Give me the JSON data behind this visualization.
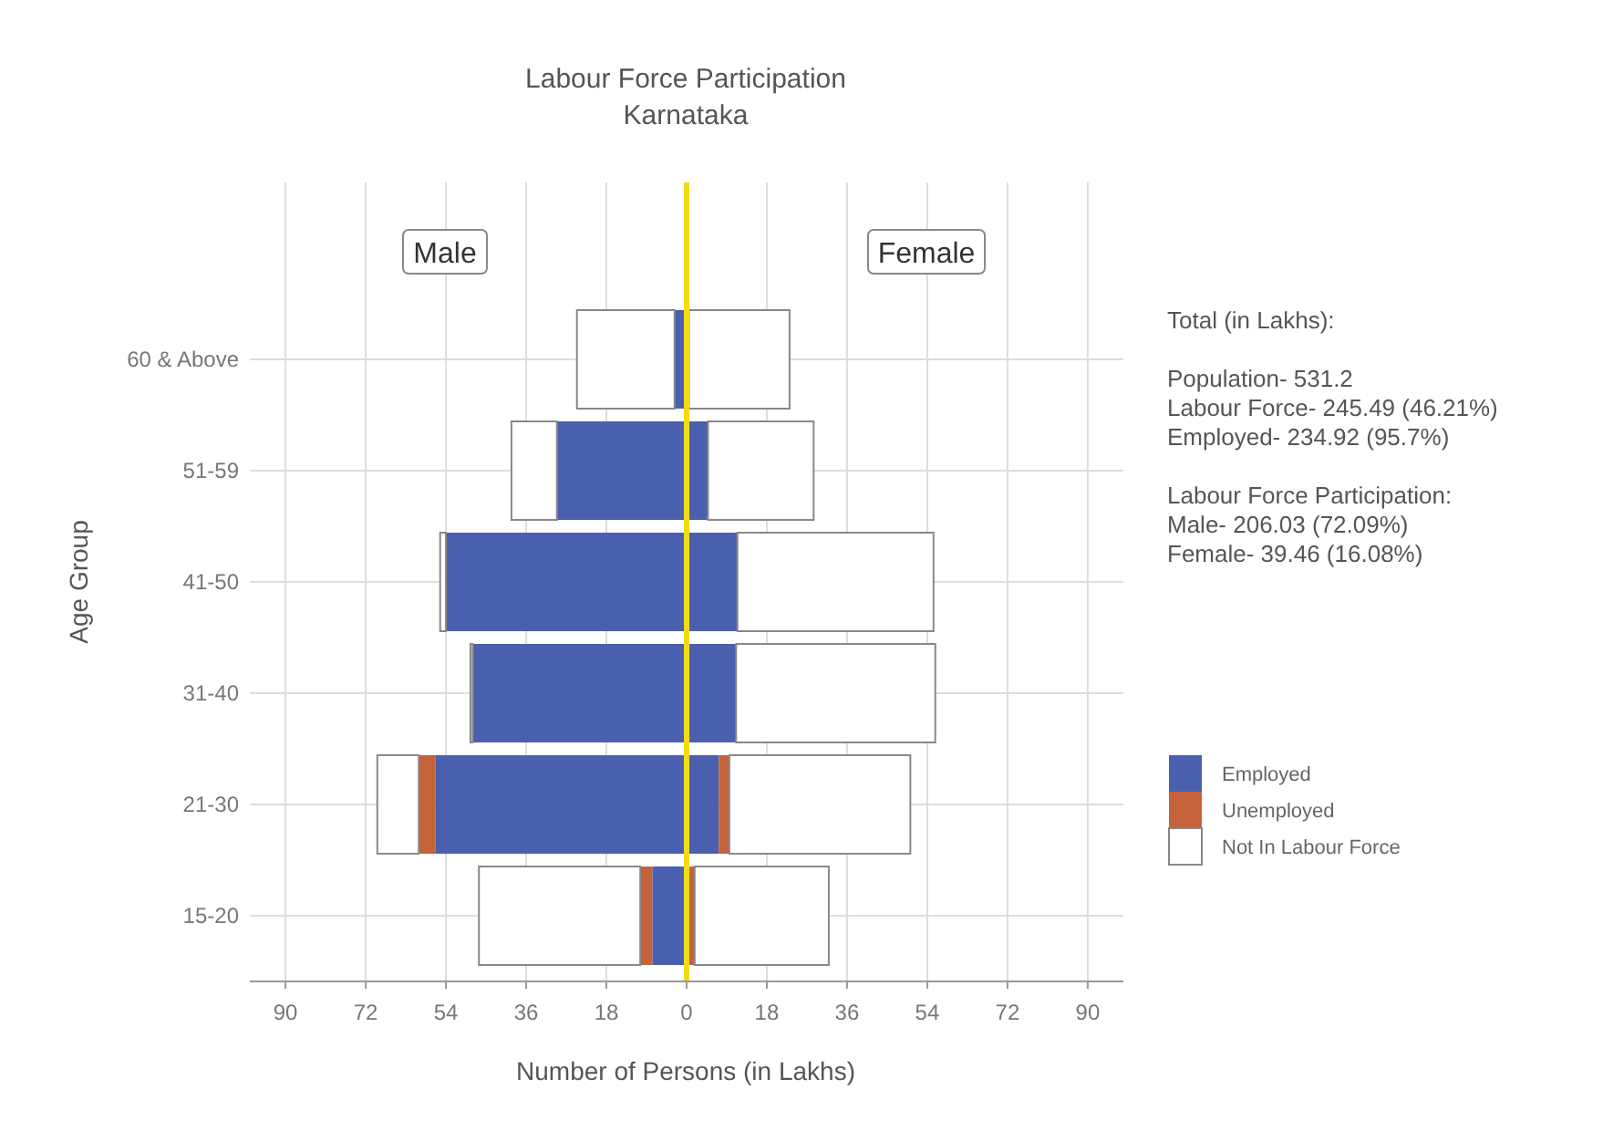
{
  "chart_data": {
    "type": "bar",
    "orientation": "horizontal",
    "stacked": true,
    "title": "Labour Force Participation",
    "subtitle": "Karnataka",
    "xlabel": "Number of Persons (in Lakhs)",
    "ylabel": "Age Group",
    "categories": [
      "60 & Above",
      "51-59",
      "41-50",
      "31-40",
      "21-30",
      "15-20"
    ],
    "series": [
      {
        "name": "Employed",
        "color": "#4a60ae",
        "values": [
          -2.7,
          -29.1,
          -54.0,
          -48.0,
          -56.4,
          -7.7
        ]
      },
      {
        "name": "Unemployed",
        "color": "#c4623a",
        "values": [
          0,
          0,
          0,
          0,
          -3.7,
          -2.7
        ]
      },
      {
        "name": "Not In Labour Force",
        "color": "#ffffff",
        "values": [
          -21.9,
          -10.2,
          -1.3,
          -0.5,
          -9.3,
          -36.2
        ]
      },
      {
        "color": "#4a60ae",
        "values": [
          0.5,
          4.8,
          11.4,
          11.1,
          7.2,
          0.3
        ]
      },
      {
        "color": "#c4623a",
        "values": [
          0,
          0,
          0,
          0,
          2.4,
          1.5
        ]
      },
      {
        "color": "#ffffff",
        "values": [
          22.6,
          23.7,
          44.0,
          44.7,
          40.6,
          30.1
        ]
      }
    ],
    "xlim": [
      -98,
      98
    ],
    "xticks": [
      {
        "value": -90,
        "label": "90"
      },
      {
        "value": -72,
        "label": "72"
      },
      {
        "value": -54,
        "label": "54"
      },
      {
        "value": -36,
        "label": "36"
      },
      {
        "value": -18,
        "label": "18"
      },
      0,
      18,
      36,
      54,
      72,
      90
    ],
    "ref_lines": [
      {
        "axis": "x",
        "value": 0,
        "color": "#f2dc18"
      }
    ],
    "grid": true,
    "legend": "right",
    "annotations": [
      "Male",
      "Female",
      "Total (in Lakhs):",
      "Population- 531.2",
      "Labour Force- 245.49 (46.21%)",
      "Employed- 234.92 (95.7%)",
      "Labour Force Participation:",
      "Male- 206.03 (72.09%)",
      "Female- 39.46 (16.08%)"
    ]
  }
}
